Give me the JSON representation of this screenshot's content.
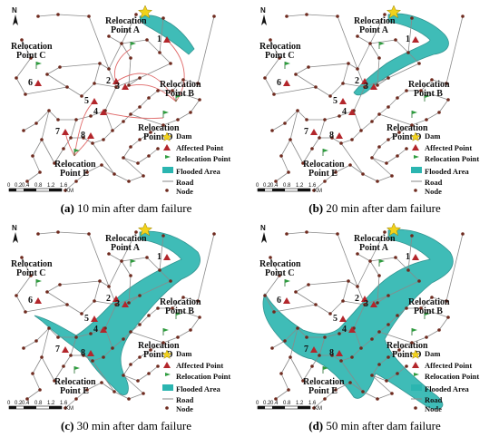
{
  "captions": [
    {
      "letter": "(a)",
      "text": "10 min after dam failure"
    },
    {
      "letter": "(b)",
      "text": "20 min after dam failure"
    },
    {
      "letter": "(c)",
      "text": "30 min after dam failure"
    },
    {
      "letter": "(d)",
      "text": "50 min after dam failure"
    }
  ],
  "north_label": "N",
  "relocation_points": [
    {
      "line1": "Relocation",
      "line2": "Point A"
    },
    {
      "line1": "Relocation",
      "line2": "Point B"
    },
    {
      "line1": "Relocation",
      "line2": "Point C"
    },
    {
      "line1": "Relocation",
      "line2": "Point D"
    },
    {
      "line1": "Relocation",
      "line2": "Point E"
    }
  ],
  "affected_point_numbers": [
    "1",
    "2",
    "3",
    "4",
    "5",
    "6",
    "7",
    "8"
  ],
  "legend": {
    "dam": "Dam",
    "affected": "Affected Point",
    "relocation": "Relocation Point",
    "flooded": "Flooded Area",
    "road": "Road",
    "node": "Node"
  },
  "scale": {
    "ticks": [
      "0",
      "0.2",
      "0.4",
      "0.8",
      "1.2",
      "1.6"
    ],
    "unit": "KM"
  },
  "colors": {
    "flood": "#2bb5b0",
    "flood_stroke": "#1d8a86",
    "road": "#8a8a8a",
    "node": "#6e2a1e",
    "affected": "#b3262b",
    "relocation": "#2e9c3e",
    "dam": "#f2d21b",
    "evac_route": "#e06a6a"
  }
}
